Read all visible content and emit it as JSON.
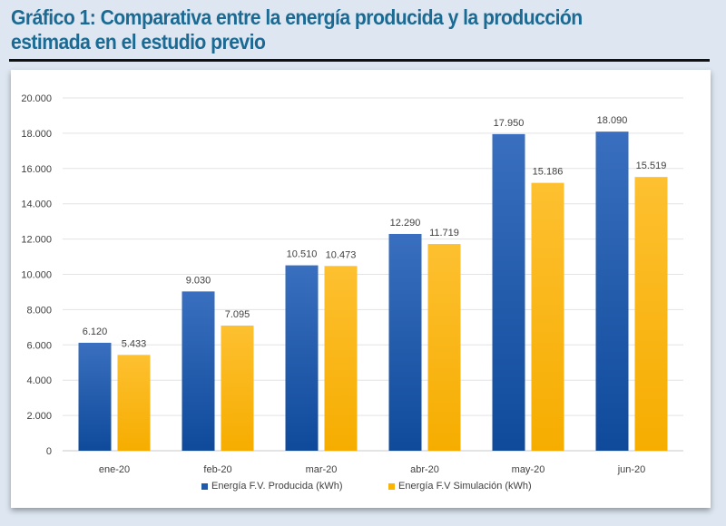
{
  "title": "Gráfico 1: Comparativa entre la energía producida y la producción estimada en el estudio previo",
  "chart_data": {
    "type": "bar",
    "title": "",
    "xlabel": "",
    "ylabel": "",
    "ylim": [
      0,
      20000
    ],
    "yticks": [
      "0",
      "2.000",
      "4.000",
      "6.000",
      "8.000",
      "10.000",
      "12.000",
      "14.000",
      "16.000",
      "18.000",
      "20.000"
    ],
    "grid": true,
    "legend_position": "bottom",
    "categories": [
      "ene-20",
      "feb-20",
      "mar-20",
      "abr-20",
      "may-20",
      "jun-20"
    ],
    "series": [
      {
        "name": "Energía F.V. Producida (kWh)",
        "color": "#1f5aa8",
        "values": [
          6120,
          9030,
          10510,
          12290,
          17950,
          18090
        ],
        "labels": [
          "6.120",
          "9.030",
          "10.510",
          "12.290",
          "17.950",
          "18.090"
        ]
      },
      {
        "name": "Energía F.V Simulación (kWh)",
        "color": "#fbb400",
        "values": [
          5433,
          7095,
          10473,
          11719,
          15186,
          15519
        ],
        "labels": [
          "5.433",
          "7.095",
          "10.473",
          "11.719",
          "15.186",
          "15.519"
        ]
      }
    ]
  }
}
